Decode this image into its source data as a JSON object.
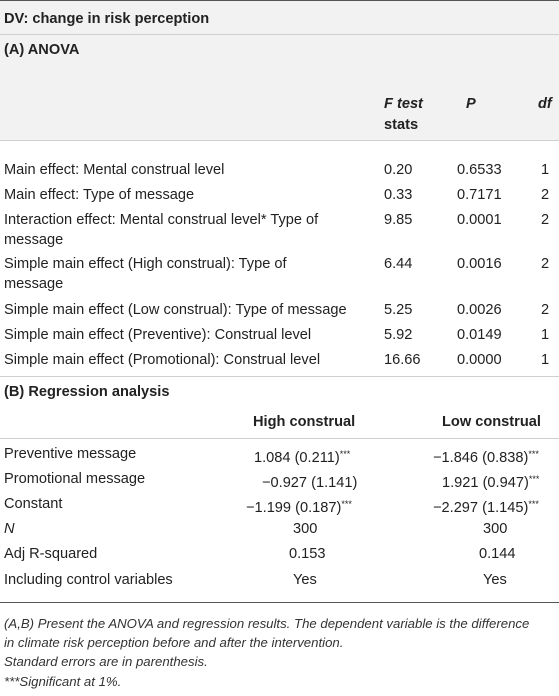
{
  "title": "DV: change in risk perception",
  "anova": {
    "heading": "(A) ANOVA",
    "headers": {
      "f_line1": "F test",
      "f_line2": "stats",
      "p": "P",
      "df": "df"
    },
    "rows": [
      {
        "label1": "Main effect: Mental construal level",
        "label2": "",
        "f": "0.20",
        "p": "0.6533",
        "df": "1"
      },
      {
        "label1": "Main effect: Type of message",
        "label2": "",
        "f": "0.33",
        "p": "0.7171",
        "df": "2"
      },
      {
        "label1": "Interaction effect: Mental construal level* Type of",
        "label2": "message",
        "f": "9.85",
        "p": "0.0001",
        "df": "2"
      },
      {
        "label1": "Simple main effect (High construal): Type of",
        "label2": "message",
        "f": "6.44",
        "p": "0.0016",
        "df": "2"
      },
      {
        "label1": "Simple main effect (Low construal): Type of message",
        "label2": "",
        "f": "5.25",
        "p": "0.0026",
        "df": "2"
      },
      {
        "label1": "Simple main effect (Preventive): Construal level",
        "label2": "",
        "f": "5.92",
        "p": "0.0149",
        "df": "1"
      },
      {
        "label1": "Simple main effect (Promotional): Construal level",
        "label2": "",
        "f": "16.66",
        "p": "0.0000",
        "df": "1"
      }
    ]
  },
  "regression": {
    "heading": "(B) Regression analysis",
    "headers": {
      "high": "High construal",
      "low": "Low construal"
    },
    "rows": [
      {
        "label": "Preventive message",
        "high": "1.084 (0.211)",
        "high_sig": "***",
        "low": "−1.846 (0.838)",
        "low_sig": "***"
      },
      {
        "label": "Promotional message",
        "high": "−0.927 (1.141)",
        "high_sig": "",
        "low": "1.921 (0.947)",
        "low_sig": "***"
      },
      {
        "label": "Constant",
        "high": "−1.199 (0.187)",
        "high_sig": "***",
        "low": "−2.297 (1.145)",
        "low_sig": "***"
      },
      {
        "label": "N",
        "high": "300",
        "high_sig": "",
        "low": "300",
        "low_sig": ""
      },
      {
        "label": "Adj R-squared",
        "high": "0.153",
        "high_sig": "",
        "low": "0.144",
        "low_sig": ""
      },
      {
        "label": "Including control variables",
        "high": "Yes",
        "high_sig": "",
        "low": "Yes",
        "low_sig": ""
      }
    ]
  },
  "footnotes": {
    "line1": "(A,B) Present the ANOVA and regression results. The dependent variable is the difference",
    "line2": "in climate risk perception before and after the intervention.",
    "line3": "Standard errors are in parenthesis.",
    "line4": "***Significant at 1%."
  }
}
